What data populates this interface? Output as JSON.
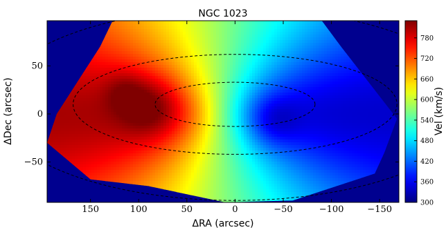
{
  "chart_data": {
    "type": "heatmap",
    "title": "NGC 1023",
    "xlabel": "ΔRA (arcsec)",
    "ylabel": "ΔDec (arcsec)",
    "xlim": [
      195,
      -170
    ],
    "ylim": [
      -92,
      97
    ],
    "xticks": [
      150,
      100,
      50,
      0,
      -50,
      -100,
      -150
    ],
    "xtick_labels": [
      "150",
      "100",
      "50",
      "0",
      "−50",
      "−100",
      "−150"
    ],
    "yticks": [
      50,
      0,
      -50
    ],
    "ytick_labels": [
      "50",
      "0",
      "−50"
    ],
    "background_color": "#00008f",
    "colorbar": {
      "label": "Vel (km/s)",
      "range": [
        300,
        830
      ],
      "ticks": [
        300,
        360,
        420,
        480,
        540,
        600,
        660,
        720,
        780
      ],
      "tick_labels": [
        "300",
        "360",
        "420",
        "480",
        "540",
        "600",
        "660",
        "720",
        "780"
      ],
      "colormap": "jet"
    },
    "data_region_polygon": [
      [
        127,
        97
      ],
      [
        -90,
        97
      ],
      [
        -110,
        70
      ],
      [
        -168,
        -5
      ],
      [
        -155,
        -40
      ],
      [
        -145,
        -62
      ],
      [
        -60,
        -90
      ],
      [
        10,
        -92
      ],
      [
        90,
        -75
      ],
      [
        150,
        -68
      ],
      [
        195,
        -30
      ],
      [
        185,
        0
      ],
      [
        140,
        70
      ]
    ],
    "velocity_field_model": {
      "center_x": 15,
      "center_y": 0,
      "v_systemic": 575,
      "v_amplitude": 235,
      "rise_scale_arcsec": 50,
      "axis_ratio": 0.55,
      "features": [
        {
          "x": 88,
          "y": 8,
          "sigma": 22,
          "delta_v": 60
        },
        {
          "x": 115,
          "y": 25,
          "sigma": 15,
          "delta_v": 35
        },
        {
          "x": -40,
          "y": -8,
          "sigma": 18,
          "delta_v": -45
        }
      ]
    },
    "ellipses": [
      {
        "cx": 0,
        "cy": 10,
        "rx": 83,
        "ry": 23
      },
      {
        "cx": 0,
        "cy": 10,
        "rx": 168,
        "ry": 52
      },
      {
        "cx": 0,
        "cy": 10,
        "rx": 250,
        "ry": 100
      }
    ]
  }
}
